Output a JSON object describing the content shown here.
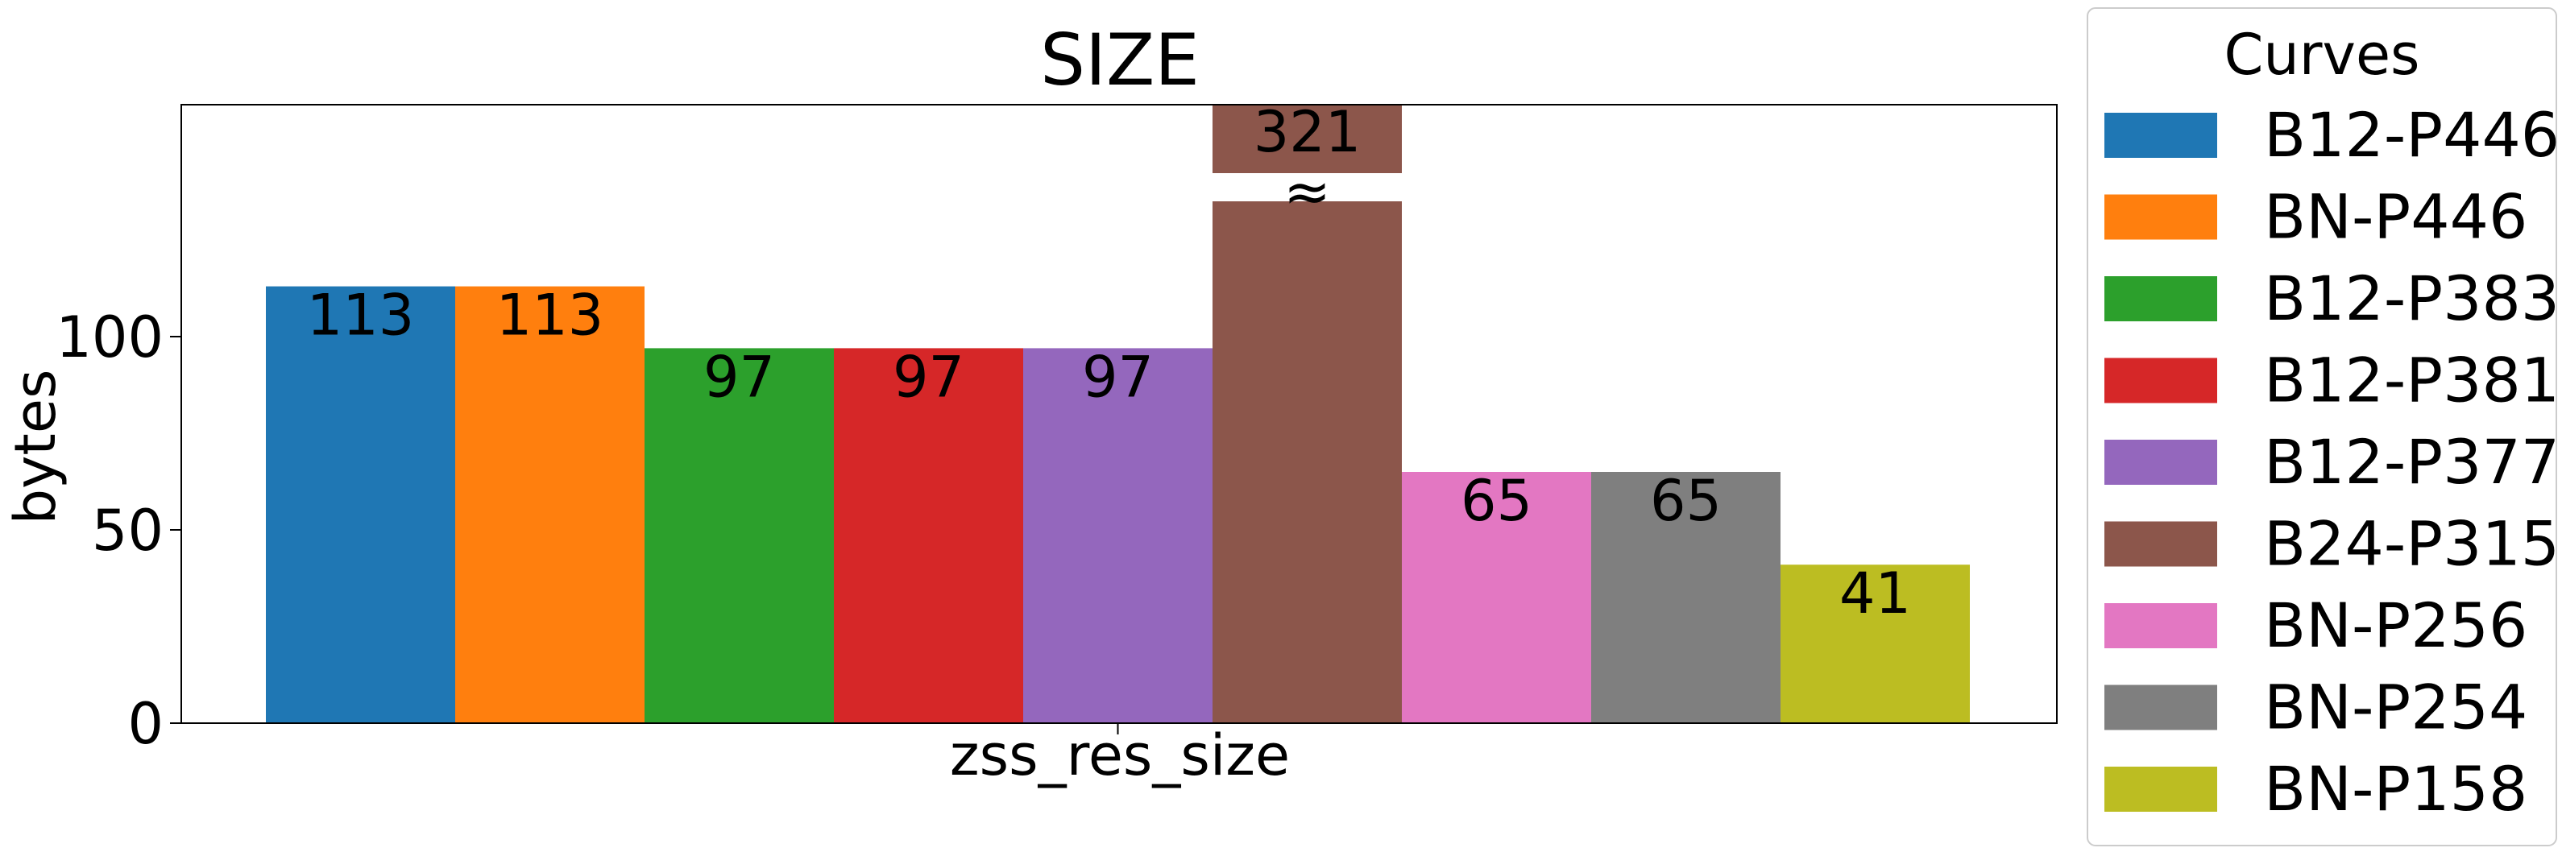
{
  "chart_data": {
    "type": "bar",
    "title": "SIZE",
    "xlabel": "zss_res_size",
    "ylabel": "bytes",
    "categories": [
      "zss_res_size"
    ],
    "ylim": [
      0,
      160
    ],
    "yticks": [
      0,
      50,
      100
    ],
    "axis_break": true,
    "grid": false,
    "legend": {
      "title": "Curves",
      "placement": "right-outside"
    },
    "series": [
      {
        "name": "B12-P446",
        "value": 113,
        "label": "113",
        "color": "#1f77b4"
      },
      {
        "name": "BN-P446",
        "value": 113,
        "label": "113",
        "color": "#ff7f0e"
      },
      {
        "name": "B12-P383",
        "value": 97,
        "label": "97",
        "color": "#2ca02c"
      },
      {
        "name": "B12-P381",
        "value": 97,
        "label": "97",
        "color": "#d62728"
      },
      {
        "name": "B12-P377",
        "value": 97,
        "label": "97",
        "color": "#9467bd"
      },
      {
        "name": "B24-P315",
        "value": 321,
        "label": "321",
        "color": "#8c564b",
        "broken": true
      },
      {
        "name": "BN-P256",
        "value": 65,
        "label": "65",
        "color": "#e377c2"
      },
      {
        "name": "BN-P254",
        "value": 65,
        "label": "65",
        "color": "#7f7f7f"
      },
      {
        "name": "BN-P158",
        "value": 41,
        "label": "41",
        "color": "#bcbd22"
      }
    ],
    "break_marker": "≈"
  }
}
